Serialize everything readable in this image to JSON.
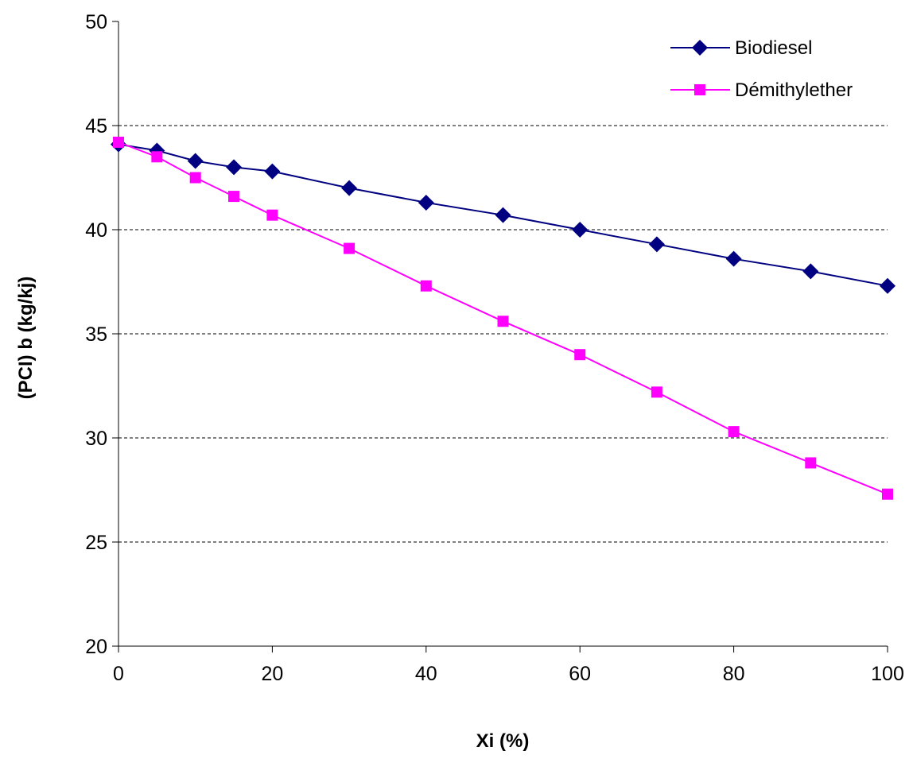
{
  "chart_data": {
    "type": "line",
    "title": "",
    "xlabel": "Xi (%)",
    "ylabel": "(PCI) b  (kg/kj)",
    "xlim": [
      0,
      100
    ],
    "ylim": [
      20,
      50
    ],
    "xticks": [
      0,
      20,
      40,
      60,
      80,
      100
    ],
    "yticks": [
      20,
      25,
      30,
      35,
      40,
      45,
      50
    ],
    "xtick_labels": [
      "0",
      "20",
      "40",
      "60",
      "80",
      "100"
    ],
    "ytick_labels": [
      "20",
      "25",
      "30",
      "35",
      "40",
      "45",
      "50"
    ],
    "grid": "horizontal dashed",
    "legend_position": "top-right",
    "series": [
      {
        "name": "Biodiesel",
        "color": "#000080",
        "marker": "diamond",
        "x": [
          0,
          5,
          10,
          15,
          20,
          30,
          40,
          50,
          60,
          70,
          80,
          90,
          100
        ],
        "y": [
          44.1,
          43.8,
          43.3,
          43.0,
          42.8,
          42.0,
          41.3,
          40.7,
          40.0,
          39.3,
          38.6,
          38.0,
          37.3
        ]
      },
      {
        "name": "Démithylether",
        "color": "#ff00ff",
        "marker": "square",
        "x": [
          0,
          5,
          10,
          15,
          20,
          30,
          40,
          50,
          60,
          70,
          80,
          90,
          100
        ],
        "y": [
          44.2,
          43.5,
          42.5,
          41.6,
          40.7,
          39.1,
          37.3,
          35.6,
          34.0,
          32.2,
          30.3,
          28.8,
          27.3
        ]
      }
    ]
  }
}
